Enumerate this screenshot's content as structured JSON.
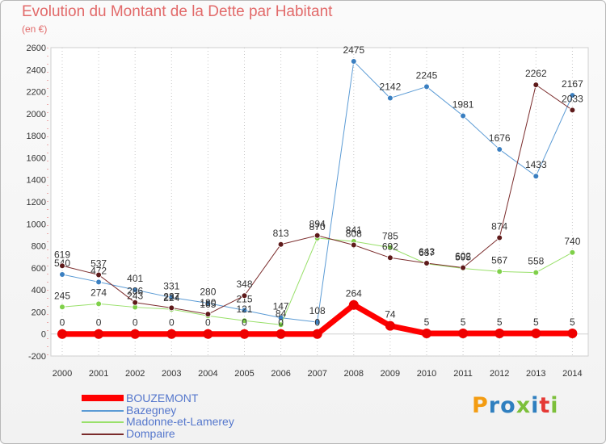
{
  "title": "Evolution du Montant de la Dette par Habitant",
  "unit": "(en €)",
  "logo": {
    "text": "Proxiti",
    "colors": [
      "#f39c12",
      "#2f7fbf",
      "#2f7fbf",
      "#7cbf3a",
      "#2f7fbf",
      "#e53935",
      "#7cbf3a"
    ]
  },
  "chart_data": {
    "type": "line",
    "title": "Evolution du Montant de la Dette par Habitant",
    "ylabel": "(en €)",
    "xlabel": "",
    "x": [
      "2000",
      "2001",
      "2002",
      "2003",
      "2004",
      "2005",
      "2006",
      "2007",
      "2008",
      "2009",
      "2010",
      "2011",
      "2012",
      "2013",
      "2014"
    ],
    "ylim": [
      -200,
      2600
    ],
    "yticks": [
      -200,
      0,
      200,
      400,
      600,
      800,
      1000,
      1200,
      1400,
      1600,
      1800,
      2000,
      2200,
      2400,
      2600
    ],
    "grid": "vertical dotted",
    "legend": "bottom-left",
    "series": [
      {
        "name": "Bazegney",
        "color": "#5b9bd5",
        "marker": "#3a7fc1",
        "width": 1,
        "values": [
          540,
          472,
          401,
          331,
          280,
          215,
          147,
          108,
          2475,
          2142,
          2245,
          1981,
          1676,
          1433,
          2167
        ],
        "labels": [
          "540",
          "472",
          "401",
          "331",
          "280",
          "215",
          "147",
          "108",
          "2475",
          "2142",
          "2245",
          "1981",
          "1676",
          "1433",
          "2167"
        ]
      },
      {
        "name": "Madonne-et-Lamerey",
        "color": "#99e06a",
        "marker": "#7fd04a",
        "width": 1,
        "values": [
          245,
          274,
          243,
          224,
          165,
          121,
          84,
          870,
          841,
          785,
          637,
          595,
          567,
          558,
          740
        ],
        "labels": [
          "245",
          "274",
          "243",
          "224",
          "165",
          "121",
          "84",
          "870",
          "841",
          "785",
          "637",
          "595",
          "567",
          "558",
          "740"
        ]
      },
      {
        "name": "Dompaire",
        "color": "#7a2b2b",
        "marker": "#5e1a1a",
        "width": 1,
        "values": [
          619,
          537,
          286,
          237,
          180,
          348,
          813,
          894,
          808,
          692,
          643,
          602,
          874,
          2262,
          2033
        ],
        "labels": [
          "619",
          "537",
          "286",
          "237",
          "180",
          "348",
          "813",
          "894",
          "808",
          "692",
          "643",
          "602",
          "874",
          "2262",
          "2033"
        ]
      },
      {
        "name": "BOUZEMONT",
        "color": "#ff0000",
        "marker": "#ee0000",
        "width": 7,
        "values": [
          0,
          0,
          0,
          0,
          0,
          0,
          0,
          0,
          264,
          74,
          5,
          5,
          5,
          5,
          5
        ],
        "labels": [
          "0",
          "0",
          "0",
          "0",
          "0",
          "0",
          "0",
          "0",
          "264",
          "74",
          "5",
          "5",
          "5",
          "5",
          "5"
        ]
      }
    ]
  },
  "legend": [
    {
      "name": "BOUZEMONT",
      "color": "#ff0000",
      "text_color": "#5577cc",
      "thick": true
    },
    {
      "name": "Bazegney",
      "color": "#5b9bd5",
      "text_color": "#5577cc",
      "thick": false
    },
    {
      "name": "Madonne-et-Lamerey",
      "color": "#99e06a",
      "text_color": "#5577cc",
      "thick": false
    },
    {
      "name": "Dompaire",
      "color": "#7a2b2b",
      "text_color": "#5577cc",
      "thick": false
    }
  ]
}
